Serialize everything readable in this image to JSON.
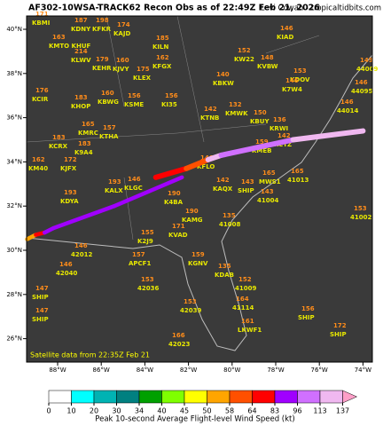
{
  "header": {
    "title": "AF302-10WSA-TRACK62 Recon Obs as of 22:49Z Feb 21, 2026",
    "credit": "Levi Cowan - tropicaltidbits.com"
  },
  "satellite_note": "Satellite data from 22:35Z Feb 21",
  "lat_ticks": [
    {
      "value": 40,
      "label": "40°N"
    },
    {
      "value": 38,
      "label": "38°N"
    },
    {
      "value": 36,
      "label": "36°N"
    },
    {
      "value": 34,
      "label": "34°N"
    },
    {
      "value": 32,
      "label": "32°N"
    },
    {
      "value": 30,
      "label": "30°N"
    },
    {
      "value": 28,
      "label": "28°N"
    },
    {
      "value": 26,
      "label": "26°N"
    }
  ],
  "lon_ticks": [
    {
      "value": -88,
      "label": "88°W"
    },
    {
      "value": -86,
      "label": "86°W"
    },
    {
      "value": -84,
      "label": "84°W"
    },
    {
      "value": -82,
      "label": "82°W"
    },
    {
      "value": -80,
      "label": "80°W"
    },
    {
      "value": -78,
      "label": "78°W"
    },
    {
      "value": -76,
      "label": "76°W"
    },
    {
      "value": -74,
      "label": "74°W"
    }
  ],
  "tracks": [
    {
      "lon": [
        -89.4,
        -89.0,
        -88.6,
        -88.2,
        -85.4,
        -82.3
      ],
      "lat": [
        30.5,
        30.7,
        30.8,
        31.0,
        32.0,
        33.3
      ],
      "wind": [
        40,
        50,
        64,
        83,
        83,
        83
      ]
    },
    {
      "lon": [
        -83.5,
        -82.1,
        -81.1,
        -80.5,
        -77.2,
        -74.0
      ],
      "lat": [
        33.3,
        33.7,
        34.1,
        34.3,
        35.0,
        35.4
      ],
      "wind": [
        113,
        64,
        58,
        113,
        96,
        113
      ]
    }
  ],
  "observations": [
    {
      "id": "KBMI",
      "value": "171"
    },
    {
      "id": "KDNY",
      "value": "187"
    },
    {
      "id": "KFKR",
      "value": "198"
    },
    {
      "id": "KAJD",
      "value": "174"
    },
    {
      "id": "KMTO KHUF",
      "value": "163"
    },
    {
      "id": "KLWV",
      "value": "214"
    },
    {
      "id": "KEHR",
      "value": "179"
    },
    {
      "id": "KJVY",
      "value": "160"
    },
    {
      "id": "KCIR",
      "value": "176"
    },
    {
      "id": "KHOP",
      "value": "183"
    },
    {
      "id": "KBWG",
      "value": "160"
    },
    {
      "id": "KMRC",
      "value": "165"
    },
    {
      "id": "KTHA",
      "value": "157"
    },
    {
      "id": "KCRX",
      "value": "183"
    },
    {
      "id": "K9A4",
      "value": "183"
    },
    {
      "id": "KM40",
      "value": "162"
    },
    {
      "id": "KJFX",
      "value": "172"
    },
    {
      "id": "KDYA",
      "value": "193"
    },
    {
      "id": "KALX",
      "value": "193"
    },
    {
      "id": "KLGC",
      "value": "146"
    },
    {
      "id": "K4BA",
      "value": "190"
    },
    {
      "id": "KAMG",
      "value": "190"
    },
    {
      "id": "KVAD",
      "value": "171"
    },
    {
      "id": "K2J9",
      "value": "155"
    },
    {
      "id": "APCF1",
      "value": "157"
    },
    {
      "id": "42012",
      "value": "146"
    },
    {
      "id": "42040",
      "value": "146"
    },
    {
      "id": "42036",
      "value": "153"
    },
    {
      "id": "42039",
      "value": "153"
    },
    {
      "id": "42023",
      "value": "166"
    },
    {
      "id": "KGNV",
      "value": "159"
    },
    {
      "id": "KDAB",
      "value": "135"
    },
    {
      "id": "41009",
      "value": "152"
    },
    {
      "id": "41114",
      "value": "164"
    },
    {
      "id": "LKWF1",
      "value": "161"
    },
    {
      "id": "41008",
      "value": "135"
    },
    {
      "id": "41004",
      "value": "143"
    },
    {
      "id": "41013",
      "value": "165"
    },
    {
      "id": "41002",
      "value": "153"
    },
    {
      "id": "44014",
      "value": "146"
    },
    {
      "id": "44095",
      "value": "146"
    },
    {
      "id": "44009",
      "value": "149"
    },
    {
      "id": "KMEB",
      "value": "159"
    },
    {
      "id": "KCTZ",
      "value": "142"
    },
    {
      "id": "KFLO",
      "value": "146"
    },
    {
      "id": "KAQX",
      "value": "142"
    },
    {
      "id": "MWS1",
      "value": "165"
    },
    {
      "id": "KILN",
      "value": "185"
    },
    {
      "id": "KFGX",
      "value": "162"
    },
    {
      "id": "KLEX",
      "value": "175"
    },
    {
      "id": "KSME",
      "value": "156"
    },
    {
      "id": "KI35",
      "value": "156"
    },
    {
      "id": "KTNB",
      "value": "142"
    },
    {
      "id": "KMWK",
      "value": "132"
    },
    {
      "id": "KBKW",
      "value": "140"
    },
    {
      "id": "KVBW",
      "value": "148"
    },
    {
      "id": "KW22",
      "value": "152"
    },
    {
      "id": "KIAD",
      "value": "146"
    },
    {
      "id": "KDOV",
      "value": "153"
    },
    {
      "id": "K7W4",
      "value": "146"
    },
    {
      "id": "KRWI",
      "value": "136"
    },
    {
      "id": "KBUY",
      "value": "150"
    },
    {
      "id": "SHIP",
      "value": "147"
    },
    {
      "id": "SHIP",
      "value": "147"
    },
    {
      "id": "SHIP",
      "value": "156"
    },
    {
      "id": "SHIP",
      "value": "172"
    },
    {
      "id": "SHIP",
      "value": "143"
    }
  ],
  "colorbar": {
    "ticks": [
      0,
      10,
      20,
      30,
      34,
      40,
      45,
      50,
      58,
      64,
      83,
      96,
      113,
      137
    ],
    "colors": [
      "#ffffff",
      "#00ffff",
      "#00b3b3",
      "#008080",
      "#00a000",
      "#7fff00",
      "#ffff00",
      "#ffa500",
      "#ff5000",
      "#ff0000",
      "#a000ff",
      "#d070ff",
      "#f0b8f0",
      "#ff9fc8"
    ],
    "label": "Peak 10-second Average Flight-level Wind Speed (kt)"
  }
}
